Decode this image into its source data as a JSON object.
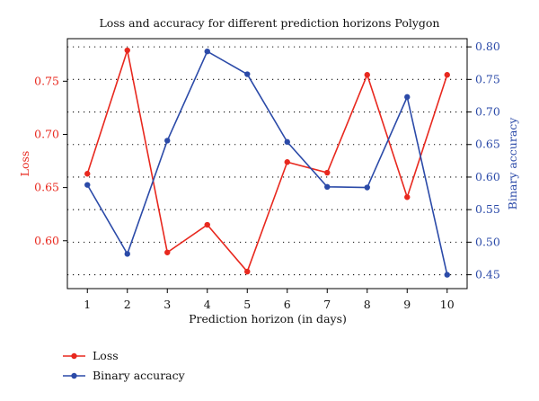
{
  "chart_data": {
    "type": "line",
    "title": "Loss and accuracy for different prediction horizons Polygon",
    "xlabel": "Prediction horizon (in days)",
    "x": [
      1,
      2,
      3,
      4,
      5,
      6,
      7,
      8,
      9,
      10
    ],
    "x_ticks": [
      "1",
      "2",
      "3",
      "4",
      "5",
      "6",
      "7",
      "8",
      "9",
      "10"
    ],
    "xlim": [
      0.5,
      10.5
    ],
    "left_axis": {
      "label": "Loss",
      "color": "#e8281e",
      "ylim": [
        0.555,
        0.79
      ],
      "ticks": [
        "0.60",
        "0.65",
        "0.70",
        "0.75"
      ]
    },
    "right_axis": {
      "label": "Binary accuracy",
      "color": "#2b4aa8",
      "ylim": [
        0.4287,
        0.8126
      ],
      "ticks": [
        "0.45",
        "0.50",
        "0.55",
        "0.60",
        "0.65",
        "0.70",
        "0.75",
        "0.80"
      ]
    },
    "series": [
      {
        "name": "Loss",
        "axis": "left",
        "color": "#e8281e",
        "values": [
          0.663,
          0.779,
          0.589,
          0.615,
          0.571,
          0.674,
          0.664,
          0.756,
          0.641,
          0.756
        ]
      },
      {
        "name": "Binary accuracy",
        "axis": "right",
        "color": "#2b4aa8",
        "values": [
          0.588,
          0.482,
          0.656,
          0.793,
          0.758,
          0.654,
          0.585,
          0.584,
          0.723,
          0.45
        ]
      }
    ],
    "grid": "horizontal dotted",
    "legend_position": "bottom-left"
  }
}
